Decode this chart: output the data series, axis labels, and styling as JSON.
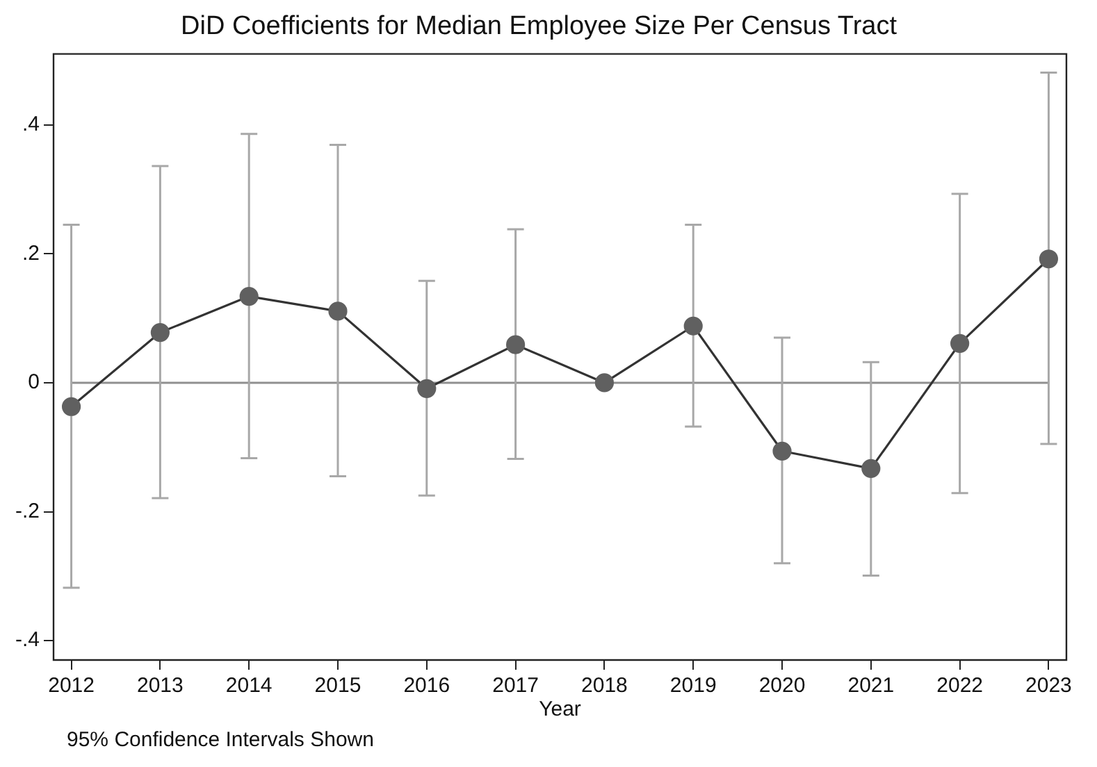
{
  "chart_data": {
    "type": "line",
    "title": "DiD Coefficients for Median Employee Size Per Census Tract",
    "xlabel": "Year",
    "x": [
      2012,
      2013,
      2014,
      2015,
      2016,
      2017,
      2018,
      2019,
      2020,
      2021,
      2022,
      2023
    ],
    "series": [
      {
        "color": "#333333",
        "values": [
          -0.037,
          0.078,
          0.134,
          0.111,
          -0.009,
          0.059,
          0,
          0.088,
          -0.106,
          -0.133,
          0.061,
          0.192
        ],
        "errors": [
          [
            -0.318,
            0.245
          ],
          [
            -0.179,
            0.336
          ],
          [
            -0.117,
            0.386
          ],
          [
            -0.145,
            0.369
          ],
          [
            -0.175,
            0.158
          ],
          [
            -0.118,
            0.238
          ],
          null,
          [
            -0.068,
            0.245
          ],
          [
            -0.28,
            0.07
          ],
          [
            -0.299,
            0.032
          ],
          [
            -0.171,
            0.293
          ],
          [
            -0.095,
            0.481
          ]
        ]
      }
    ],
    "xlim": [
      2011.8,
      2023.2
    ],
    "xticks": [
      2012,
      2013,
      2014,
      2015,
      2016,
      2017,
      2018,
      2019,
      2020,
      2021,
      2022,
      2023
    ],
    "ylim": [
      -0.43,
      0.51
    ],
    "yticks": [
      {
        "value": -0.4,
        "label": "-.4"
      },
      {
        "value": -0.2,
        "label": "-.2"
      },
      0,
      {
        "value": 0.2,
        "label": ".2"
      },
      {
        "value": 0.4,
        "label": ".4"
      }
    ],
    "ref_lines": [
      {
        "axis": "y",
        "value": 0,
        "color": "#909090"
      }
    ],
    "annotations": [
      "95% Confidence Intervals Shown"
    ],
    "grid": false,
    "legend": false,
    "marker": "circle",
    "line_style": "solid"
  }
}
